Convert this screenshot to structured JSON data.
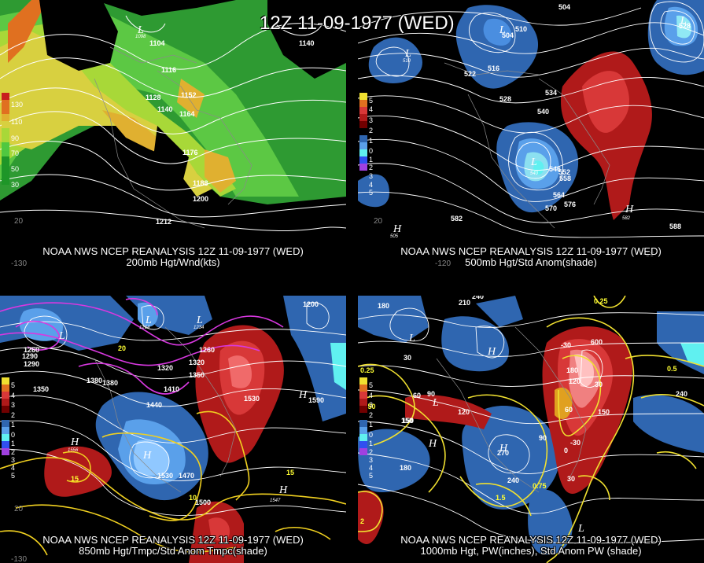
{
  "main_title": "12Z 11-09-1977 (WED)",
  "panels": {
    "p1": {
      "line1": "NOAA NWS NCEP REANALYSIS 12Z 11-09-1977 (WED)",
      "line2": "200mb Hgt/Wnd(kts)",
      "colorbar": [
        "130",
        "110",
        "90",
        "70",
        "50",
        "30"
      ],
      "colorbar_colors": [
        "#c81e1e",
        "#e07020",
        "#e0b030",
        "#d8d040",
        "#a8d838",
        "#50c840",
        "#1e9628"
      ],
      "contours": [
        "1104",
        "1140",
        "1116",
        "1128",
        "1152",
        "1140",
        "1164",
        "1176",
        "1188",
        "1200",
        "1212",
        "1098"
      ],
      "lon": [
        "-130",
        "20"
      ]
    },
    "p2": {
      "line1": "NOAA NWS NCEP REANALYSIS 12Z 11-09-1977 (WED)",
      "line2": "500mb Hgt/Std Anom(shade)",
      "colorbar": [
        "5",
        "4",
        "3",
        "2",
        "1",
        "0",
        "1",
        "2",
        "3",
        "4",
        "5"
      ],
      "contours": [
        "504",
        "504",
        "510",
        "528",
        "522",
        "516",
        "528",
        "534",
        "540",
        "546",
        "552",
        "558",
        "564",
        "570",
        "576",
        "582",
        "588",
        "510",
        "540",
        "582",
        "505"
      ],
      "lon": [
        "-120",
        "-60",
        "20"
      ]
    },
    "p3": {
      "line1": "NOAA NWS NCEP REANALYSIS 12Z 11-09-1977 (WED)",
      "line2": "850mb Hgt/Tmpc/Std Anom Tmpc(shade)",
      "colorbar": [
        "5",
        "4",
        "3",
        "2",
        "1",
        "0",
        "1",
        "2",
        "3",
        "4",
        "5"
      ],
      "contours": [
        "1200",
        "1260",
        "1290",
        "1320",
        "1350",
        "1380",
        "1410",
        "1440",
        "1470",
        "1500",
        "1530",
        "1560",
        "1590",
        "1380",
        "1350",
        "1260",
        "1320",
        "1290",
        "1264",
        "1234",
        "1527",
        "1556",
        "1547"
      ],
      "temps": [
        "20",
        "15",
        "10",
        "15",
        "5",
        "0"
      ],
      "lon": [
        "-130",
        "20"
      ]
    },
    "p4": {
      "line1": "NOAA NWS NCEP REANALYSIS 12Z 11-09-1977 (WED)",
      "line2": "1000mb Hgt, PW(inches), Std Anom PW (shade)",
      "colorbar": [
        "5",
        "4",
        "3",
        "2",
        "1",
        "0",
        "1",
        "2",
        "3",
        "4",
        "5"
      ],
      "contours": [
        "180",
        "210",
        "240",
        "30",
        "60",
        "90",
        "120",
        "150",
        "180",
        "240",
        "270",
        "30",
        "60",
        "90",
        "120",
        "150",
        "180",
        "600",
        "-30",
        "-30",
        "0",
        "30",
        "240",
        "150",
        "0.50",
        "0.25",
        "0.5",
        "0.75",
        "0.25",
        "1.5",
        "2"
      ],
      "lon": [
        "2"
      ]
    }
  }
}
